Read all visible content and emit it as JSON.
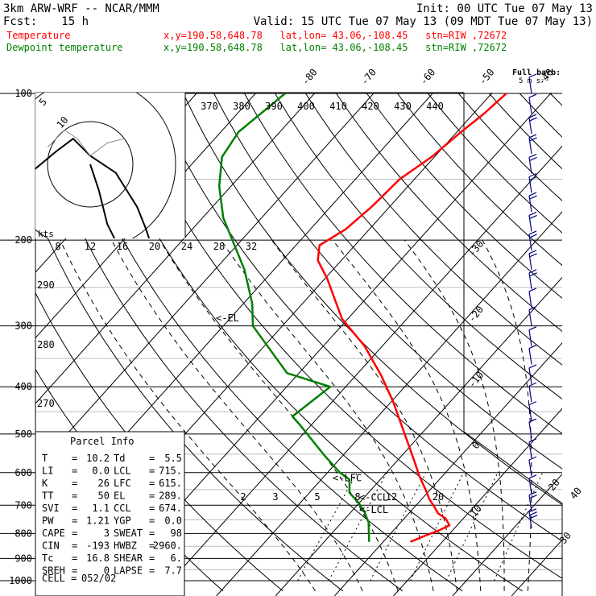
{
  "header": {
    "title": "3km ARW-WRF -- NCAR/MMM",
    "init": "Init: 00 UTC Tue 07 May 13",
    "fcst_label": "Fcst:",
    "fcst_value": "15 h",
    "valid": "Valid: 15 UTC Tue 07 May 13 (09 MDT Tue 07 May 13)"
  },
  "legend": [
    {
      "name": "Temperature",
      "info": "x,y=190.58,648.78   lat,lon= 43.06,-108.45   stn=RIW ,72672",
      "color": "#ff0000"
    },
    {
      "name": "Dewpoint temperature",
      "info": "x,y=190.58,648.78   lat,lon= 43.06,-108.45   stn=RIW ,72672",
      "color": "#008000"
    }
  ],
  "full_barb_label": "Full barb:",
  "full_barb_units": "5 m s⁻¹",
  "hodograph": {
    "units": "kts",
    "rings": [
      "5",
      "10"
    ]
  },
  "chart_data": {
    "type": "line",
    "title": "",
    "y_axis": {
      "label": "",
      "scale": "log",
      "range": [
        1000,
        100
      ],
      "ticks": [
        "100",
        "200",
        "300",
        "400",
        "500",
        "600",
        "700",
        "800",
        "900",
        "1000"
      ]
    },
    "isotherm_labels": [
      "-80",
      "-70",
      "-60",
      "-50",
      "-40",
      "-30",
      "-20",
      "-10",
      "0",
      "10",
      "20",
      "30",
      "40"
    ],
    "theta_labels": [
      "370",
      "380",
      "390",
      "400",
      "410",
      "420",
      "430",
      "440"
    ],
    "theta_side_labels": [
      "290",
      "280",
      "270"
    ],
    "mixing_ratio_top_labels": [
      "8",
      "12",
      "16",
      "20",
      "24",
      "28",
      "32"
    ],
    "mixing_ratio_low_labels": [
      "2",
      "3",
      "5",
      "8",
      "12",
      "20"
    ],
    "series": [
      {
        "name": "Temperature",
        "color": "#ff0000",
        "points": [
          [
            832,
            4.6
          ],
          [
            805,
            6.4
          ],
          [
            790,
            7.6
          ],
          [
            770,
            8.7
          ],
          [
            745,
            7.0
          ],
          [
            728,
            5.0
          ],
          [
            700,
            2.9
          ],
          [
            680,
            1.3
          ],
          [
            650,
            -0.8
          ],
          [
            610,
            -3.9
          ],
          [
            570,
            -6.9
          ],
          [
            500,
            -12.8
          ],
          [
            430,
            -19.6
          ],
          [
            380,
            -25.6
          ],
          [
            330,
            -33.0
          ],
          [
            290,
            -41.0
          ],
          [
            240,
            -49.6
          ],
          [
            220,
            -54.0
          ],
          [
            205,
            -56.0
          ],
          [
            190,
            -54.0
          ],
          [
            170,
            -53.0
          ],
          [
            150,
            -52.5
          ],
          [
            135,
            -50.5
          ],
          [
            120,
            -49.3
          ],
          [
            110,
            -48.2
          ],
          [
            100,
            -47.5
          ]
        ]
      },
      {
        "name": "Dewpoint temperature",
        "color": "#008000",
        "points": [
          [
            832,
            -2.4
          ],
          [
            800,
            -3.7
          ],
          [
            760,
            -5.4
          ],
          [
            720,
            -7.9
          ],
          [
            690,
            -10.3
          ],
          [
            660,
            -13.2
          ],
          [
            620,
            -15.2
          ],
          [
            600,
            -17.9
          ],
          [
            550,
            -23.5
          ],
          [
            480,
            -31.8
          ],
          [
            460,
            -34.5
          ],
          [
            400,
            -32.6
          ],
          [
            375,
            -42.0
          ],
          [
            300,
            -55.0
          ],
          [
            270,
            -58.5
          ],
          [
            230,
            -65.0
          ],
          [
            180,
            -76.5
          ],
          [
            155,
            -82.0
          ],
          [
            135,
            -86.0
          ],
          [
            120,
            -87.0
          ],
          [
            105,
            -85.5
          ],
          [
            100,
            -85.0
          ]
        ]
      }
    ],
    "annotations": [
      "<-EL",
      "<-LFC",
      "<-CCL",
      "<-LCL"
    ],
    "hodograph_trace": [
      [
        0,
        0
      ],
      [
        1,
        -3
      ],
      [
        1.5,
        -5
      ],
      [
        2,
        -7
      ],
      [
        3.5,
        -10
      ],
      [
        5,
        -12
      ],
      [
        6.5,
        -15
      ],
      [
        7.5,
        -18
      ],
      [
        9,
        -19.5
      ],
      [
        10,
        -17
      ],
      [
        8,
        -12
      ],
      [
        6.5,
        -7.5
      ],
      [
        5.5,
        -5
      ],
      [
        3,
        -1
      ],
      [
        0,
        1
      ],
      [
        -2,
        3
      ],
      [
        -4,
        1.5
      ],
      [
        -7,
        -1
      ],
      [
        -10,
        -2
      ]
    ],
    "hodograph_gray": [
      [
        -5,
        2
      ],
      [
        -3,
        4
      ],
      [
        -1.5,
        3
      ],
      [
        0,
        1
      ],
      [
        2,
        2.5
      ],
      [
        4,
        3
      ]
    ],
    "wind_barbs": [
      {
        "pressure": 100,
        "speed": 5
      },
      {
        "pressure": 110,
        "speed": 7
      },
      {
        "pressure": 121,
        "speed": 10
      },
      {
        "pressure": 133,
        "speed": 10
      },
      {
        "pressure": 146,
        "speed": 12
      },
      {
        "pressure": 160,
        "speed": 12
      },
      {
        "pressure": 175,
        "speed": 10
      },
      {
        "pressure": 192,
        "speed": 10
      },
      {
        "pressure": 210,
        "speed": 10
      },
      {
        "pressure": 230,
        "speed": 10
      },
      {
        "pressure": 252,
        "speed": 10
      },
      {
        "pressure": 275,
        "speed": 7
      },
      {
        "pressure": 300,
        "speed": 7
      },
      {
        "pressure": 330,
        "speed": 7
      },
      {
        "pressure": 360,
        "speed": 7
      },
      {
        "pressure": 395,
        "speed": 7
      },
      {
        "pressure": 430,
        "speed": 7
      },
      {
        "pressure": 470,
        "speed": 5
      },
      {
        "pressure": 510,
        "speed": 5
      },
      {
        "pressure": 560,
        "speed": 5
      },
      {
        "pressure": 610,
        "speed": 5
      },
      {
        "pressure": 665,
        "speed": 5
      },
      {
        "pressure": 720,
        "speed": 10
      },
      {
        "pressure": 780,
        "speed": 15
      }
    ]
  },
  "parcel_info": {
    "title": "Parcel Info",
    "rows": [
      [
        "T",
        "10.2",
        "Td",
        "5.5"
      ],
      [
        "LI",
        "0.0",
        "LCL",
        "715."
      ],
      [
        "K",
        "26",
        "LFC",
        "615."
      ],
      [
        "TT",
        "50",
        "EL",
        "289."
      ],
      [
        "SVI",
        "1.1",
        "CCL",
        "674."
      ],
      [
        "PW",
        "1.21",
        "YGP",
        "0.0"
      ],
      [
        "CAPE",
        "3",
        "SWEAT",
        "98"
      ],
      [
        "CIN",
        "-193",
        "HWBZ",
        "2960."
      ],
      [
        "Tc",
        "16.8",
        "SHEAR",
        "6."
      ],
      [
        "SREH",
        "0",
        "LAPSE",
        "7.7"
      ]
    ],
    "cell_label": "CELL =",
    "cell_value": "052/02"
  }
}
